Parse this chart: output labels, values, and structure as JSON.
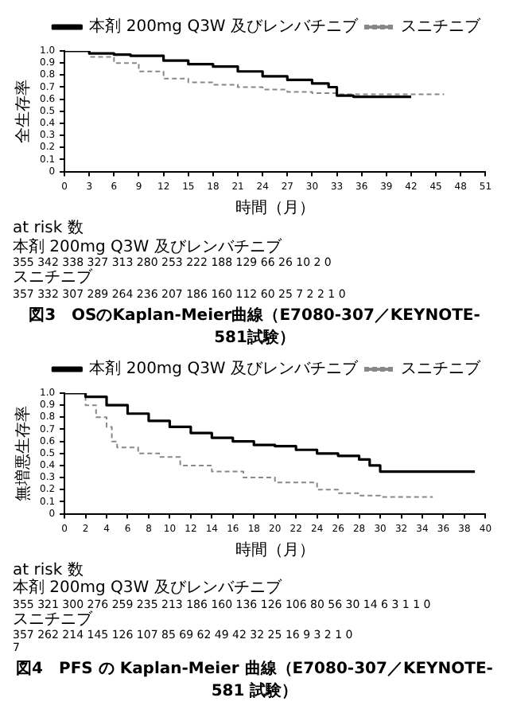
{
  "chart_data": [
    {
      "type": "step",
      "title": "図3　OSのKaplan-Meier曲線（E7080-307／KEYNOTE-581試験）",
      "xlabel": "時間（月）",
      "ylabel": "全生存率",
      "xlim": [
        0,
        51
      ],
      "xticks": [
        0,
        3,
        6,
        9,
        12,
        15,
        18,
        21,
        24,
        27,
        30,
        33,
        36,
        39,
        42,
        45,
        48,
        51
      ],
      "ylim": [
        0,
        1
      ],
      "yticks": [
        0,
        0.1,
        0.2,
        0.3,
        0.4,
        0.5,
        0.6,
        0.7,
        0.8,
        0.9,
        {
          "value": 1,
          "label": "1.0"
        }
      ],
      "grid": false,
      "legend": "top right",
      "marker": "none",
      "series": [
        {
          "name": "本剤 200mg Q3W 及びレンバチニブ",
          "color": "#000000",
          "line_style": "solid",
          "x": [
            0,
            3,
            6,
            8,
            12,
            15,
            18,
            21,
            24,
            27,
            30,
            32,
            33,
            35,
            42
          ],
          "values": [
            1.0,
            0.98,
            0.97,
            0.96,
            0.92,
            0.89,
            0.87,
            0.83,
            0.79,
            0.76,
            0.73,
            0.7,
            0.63,
            0.62,
            0.62
          ]
        },
        {
          "name": "スニチニブ",
          "color": "#888888",
          "line_style": "dashed",
          "x": [
            0,
            3,
            6,
            9,
            12,
            15,
            18,
            21,
            24,
            27,
            30,
            33,
            36,
            42,
            46
          ],
          "values": [
            1.0,
            0.95,
            0.9,
            0.83,
            0.77,
            0.74,
            0.72,
            0.7,
            0.68,
            0.66,
            0.65,
            0.64,
            0.64,
            0.64,
            0.64
          ]
        }
      ],
      "annotations": [
        "at risk 数",
        "本剤 200mg Q3W 及びレンバチニブ",
        "355 342 338 327 313 280 253 222 188 129 66 26 10 2 0",
        "スニチニブ",
        "357 332 307 289 264 236 207 186 160 112 60 25 7 2 2 1 0"
      ]
    },
    {
      "type": "step",
      "title": "図4　PFS の Kaplan-Meier 曲線（E7080-307／KEYNOTE-581 試験）",
      "xlabel": "時間（月）",
      "ylabel": "無増悪生存率",
      "xlim": [
        0,
        40
      ],
      "xticks": [
        0,
        2,
        4,
        6,
        8,
        10,
        12,
        14,
        16,
        18,
        20,
        22,
        24,
        26,
        28,
        30,
        32,
        34,
        36,
        38,
        40
      ],
      "ylim": [
        0,
        1
      ],
      "yticks": [
        0,
        0.1,
        0.2,
        0.3,
        0.4,
        0.5,
        0.6,
        0.7,
        0.8,
        0.9,
        {
          "value": 1,
          "label": "1.0"
        }
      ],
      "grid": false,
      "legend": "top right",
      "marker": "none",
      "series": [
        {
          "name": "本剤 200mg Q3W 及びレンバチニブ",
          "color": "#000000",
          "line_style": "solid",
          "x": [
            0,
            2,
            4,
            6,
            8,
            10,
            12,
            14,
            16,
            18,
            20,
            22,
            24,
            26,
            28,
            29,
            30,
            32,
            39
          ],
          "values": [
            1.0,
            0.97,
            0.9,
            0.83,
            0.77,
            0.72,
            0.67,
            0.63,
            0.6,
            0.57,
            0.56,
            0.53,
            0.5,
            0.48,
            0.45,
            0.4,
            0.35,
            0.35,
            0.35
          ]
        },
        {
          "name": "スニチニブ",
          "color": "#888888",
          "line_style": "dashed",
          "x": [
            0,
            2,
            3,
            4,
            4.5,
            5,
            7,
            9,
            11,
            14,
            17,
            20,
            24,
            26,
            28,
            30,
            35
          ],
          "values": [
            1.0,
            0.9,
            0.8,
            0.72,
            0.6,
            0.55,
            0.5,
            0.47,
            0.4,
            0.35,
            0.3,
            0.26,
            0.2,
            0.17,
            0.15,
            0.14,
            0.14
          ]
        }
      ],
      "annotations": [
        "at risk 数",
        "本剤 200mg Q3W 及びレンバチニブ",
        "355 321 300 276 259 235 213 186 160 136 126 106 80 56 30 14 6 3 1 1 0",
        "スニチニブ",
        "357 262 214 145 126 107 85 69 62 49 42 32 25 16 9 3 2 1 0",
        "7"
      ]
    }
  ]
}
